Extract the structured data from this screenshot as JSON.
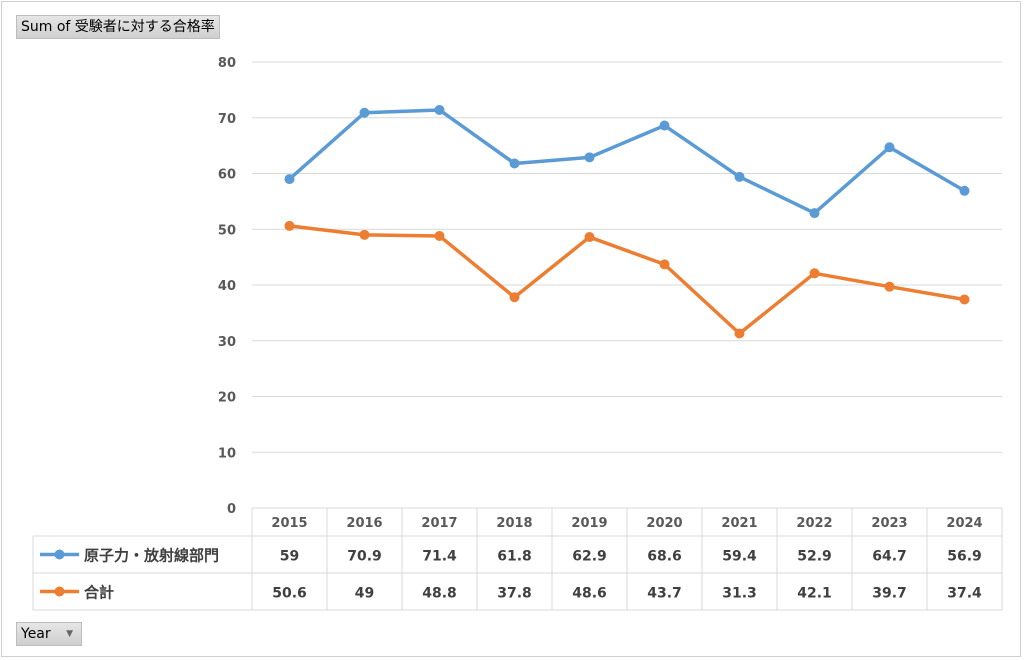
{
  "pivot": {
    "value_field": "Sum of 受験者に対する合格率",
    "row_field": "Year"
  },
  "chart_data": {
    "type": "line",
    "x": [
      "2015",
      "2016",
      "2017",
      "2018",
      "2019",
      "2020",
      "2021",
      "2022",
      "2023",
      "2024"
    ],
    "ylim": [
      0,
      80
    ],
    "yticks": [
      "0",
      "10",
      "20",
      "30",
      "40",
      "50",
      "60",
      "70",
      "80"
    ],
    "grid": true,
    "legend": "data-table",
    "series": [
      {
        "name": "原子力・放射線部門",
        "color": "#5b9bd5",
        "values": [
          59,
          70.9,
          71.4,
          61.8,
          62.9,
          68.6,
          59.4,
          52.9,
          64.7,
          56.9
        ],
        "labels": [
          "59",
          "70.9",
          "71.4",
          "61.8",
          "62.9",
          "68.6",
          "59.4",
          "52.9",
          "64.7",
          "56.9"
        ]
      },
      {
        "name": "合計",
        "color": "#ed7d31",
        "values": [
          50.6,
          49,
          48.8,
          37.8,
          48.6,
          43.7,
          31.3,
          42.1,
          39.7,
          37.4
        ],
        "labels": [
          "50.6",
          "49",
          "48.8",
          "37.8",
          "48.6",
          "43.7",
          "31.3",
          "42.1",
          "39.7",
          "37.4"
        ]
      }
    ]
  }
}
